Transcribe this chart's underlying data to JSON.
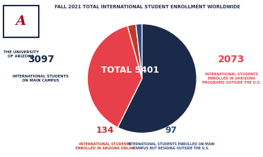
{
  "title": "FALL 2021 TOTAL INTERNATIONAL STUDENT ENROLLMENT WORLDWIDE",
  "total_label": "TOTAL 5401",
  "slices": [
    3097,
    2073,
    134,
    97
  ],
  "slice_colors": [
    "#1B2A4A",
    "#E8404A",
    "#C0392B",
    "#2E4A7A"
  ],
  "label_colors": [
    "#1B2A4A",
    "#E8404A",
    "#C0392B",
    "#2E4A7A"
  ],
  "bg_color": "#FFFFFF",
  "title_color": "#1B2A4A",
  "center_text_color": "#FFFFFF",
  "startangle": 90,
  "label_numbers": [
    "3097",
    "2073",
    "134",
    "97"
  ],
  "label_desc": [
    "INTERNATIONAL STUDENTS\nON MAIN CAMPUS",
    "INTERNATIONAL STUDENTS\nENROLLED IN UARIZONA\nPROGRAMS OUTSIDE THE U.S.",
    "INTERNATIONAL STUDENTS\nENROLLED IN ARIZONA ONLINE",
    "INTERNATIONAL STUDENTS ENROLLED ON MAIN\nCAMPUS BUT RESIDING OUTSIDE THE U.S."
  ],
  "logo_box_color": "#1B2A4A",
  "logo_a_color": "#AB0520",
  "logo_text_color": "#1B2A4A"
}
